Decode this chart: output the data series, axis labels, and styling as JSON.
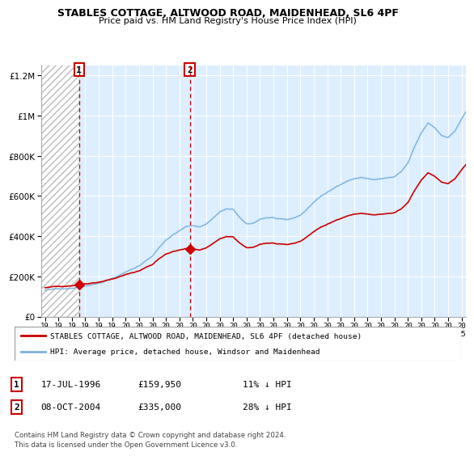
{
  "title": "STABLES COTTAGE, ALTWOOD ROAD, MAIDENHEAD, SL6 4PF",
  "subtitle": "Price paid vs. HM Land Registry's House Price Index (HPI)",
  "legend_line1": "STABLES COTTAGE, ALTWOOD ROAD, MAIDENHEAD, SL6 4PF (detached house)",
  "legend_line2": "HPI: Average price, detached house, Windsor and Maidenhead",
  "purchase1_date": "17-JUL-1996",
  "purchase1_price": 159950,
  "purchase1_label": "1",
  "purchase1_pct": "11% ↓ HPI",
  "purchase2_date": "08-OCT-2004",
  "purchase2_price": 335000,
  "purchase2_label": "2",
  "purchase2_pct": "28% ↓ HPI",
  "footnote": "Contains HM Land Registry data © Crown copyright and database right 2024.\nThis data is licensed under the Open Government Licence v3.0.",
  "hpi_color": "#7ab3e0",
  "price_color": "#cc0000",
  "marker_color": "#cc0000",
  "dashed_color": "#cc0000",
  "plot_bg_color": "#ddeeff",
  "hatch_bg_color": "#ffffff",
  "hatch_edge_color": "#aaaaaa",
  "grid_color": "#ffffff",
  "ylim": [
    0,
    1250000
  ],
  "yticks": [
    0,
    200000,
    400000,
    600000,
    800000,
    1000000,
    1200000
  ],
  "xlim_left": 1993.7,
  "xlim_right": 2025.3,
  "purchase1_year": 1996.54,
  "purchase2_year": 2004.77,
  "xticks": [
    1994,
    1995,
    1996,
    1997,
    1998,
    1999,
    2000,
    2001,
    2002,
    2003,
    2004,
    2005,
    2006,
    2007,
    2008,
    2009,
    2010,
    2011,
    2012,
    2013,
    2014,
    2015,
    2016,
    2017,
    2018,
    2019,
    2020,
    2021,
    2022,
    2023,
    2024,
    2025
  ]
}
